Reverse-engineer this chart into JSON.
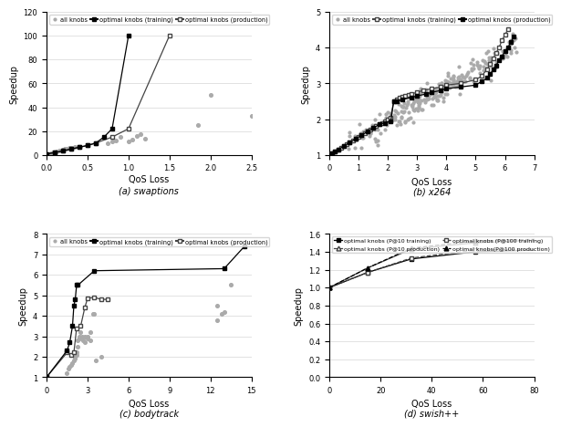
{
  "subplots": [
    {
      "label": "(a) swaptions",
      "xlabel": "QoS Loss",
      "ylabel": "Speedup",
      "xlim": [
        0,
        2.5
      ],
      "ylim": [
        0,
        120
      ],
      "yticks": [
        0,
        20,
        40,
        60,
        80,
        100,
        120
      ],
      "xticks": [
        0,
        0.5,
        1.0,
        1.5,
        2.0,
        2.5
      ],
      "all_knobs": [
        [
          0.0,
          1.0
        ],
        [
          0.05,
          1.5
        ],
        [
          0.08,
          2.0
        ],
        [
          0.1,
          2.5
        ],
        [
          0.12,
          3.0
        ],
        [
          0.15,
          3.5
        ],
        [
          0.18,
          4.0
        ],
        [
          0.2,
          4.5
        ],
        [
          0.22,
          5.0
        ],
        [
          0.25,
          5.5
        ],
        [
          0.28,
          5.8
        ],
        [
          0.3,
          6.0
        ],
        [
          0.35,
          6.5
        ],
        [
          0.4,
          7.0
        ],
        [
          0.5,
          8.0
        ],
        [
          0.75,
          10.0
        ],
        [
          0.8,
          11.0
        ],
        [
          0.85,
          12.0
        ],
        [
          0.9,
          15.0
        ],
        [
          1.0,
          11.0
        ],
        [
          1.05,
          13.0
        ],
        [
          1.1,
          16.0
        ],
        [
          1.15,
          17.5
        ],
        [
          1.2,
          14.0
        ],
        [
          1.85,
          25.0
        ],
        [
          2.0,
          50.0
        ],
        [
          2.5,
          33.0
        ]
      ],
      "train_line": [
        [
          0.0,
          1.0
        ],
        [
          0.1,
          2.0
        ],
        [
          0.2,
          3.5
        ],
        [
          0.3,
          5.0
        ],
        [
          0.4,
          6.5
        ],
        [
          0.5,
          8.0
        ],
        [
          0.6,
          10.0
        ],
        [
          0.7,
          15.0
        ],
        [
          0.8,
          22.0
        ],
        [
          1.0,
          100.0
        ]
      ],
      "prod_line": [
        [
          0.0,
          1.0
        ],
        [
          0.1,
          2.0
        ],
        [
          0.2,
          3.5
        ],
        [
          0.3,
          5.0
        ],
        [
          0.4,
          6.5
        ],
        [
          0.5,
          8.0
        ],
        [
          0.6,
          10.0
        ],
        [
          0.8,
          15.0
        ],
        [
          1.0,
          22.0
        ],
        [
          1.5,
          100.0
        ]
      ]
    },
    {
      "label": "(b) x264",
      "xlabel": "QoS Loss",
      "ylabel": "Speedup",
      "xlim": [
        0,
        7
      ],
      "ylim": [
        1,
        5
      ],
      "yticks": [
        1,
        2,
        3,
        4,
        5
      ],
      "xticks": [
        0,
        1,
        2,
        3,
        4,
        5,
        6,
        7
      ],
      "train_line": [
        [
          0.0,
          1.0
        ],
        [
          0.1,
          1.05
        ],
        [
          0.2,
          1.1
        ],
        [
          0.3,
          1.15
        ],
        [
          0.4,
          1.2
        ],
        [
          0.5,
          1.25
        ],
        [
          0.6,
          1.3
        ],
        [
          0.7,
          1.35
        ],
        [
          0.8,
          1.4
        ],
        [
          0.9,
          1.45
        ],
        [
          1.0,
          1.5
        ],
        [
          1.1,
          1.55
        ],
        [
          1.2,
          1.6
        ],
        [
          1.3,
          1.65
        ],
        [
          1.4,
          1.7
        ],
        [
          1.5,
          1.75
        ],
        [
          1.6,
          1.8
        ],
        [
          1.7,
          1.85
        ],
        [
          1.8,
          1.9
        ],
        [
          1.9,
          1.95
        ],
        [
          2.0,
          2.0
        ],
        [
          2.1,
          2.05
        ],
        [
          2.2,
          2.5
        ],
        [
          2.3,
          2.55
        ],
        [
          2.4,
          2.6
        ],
        [
          2.5,
          2.62
        ],
        [
          2.6,
          2.65
        ],
        [
          2.7,
          2.68
        ],
        [
          2.8,
          2.7
        ],
        [
          3.0,
          2.75
        ],
        [
          3.2,
          2.8
        ],
        [
          3.5,
          2.85
        ],
        [
          3.8,
          2.9
        ],
        [
          4.0,
          2.95
        ],
        [
          4.5,
          3.0
        ],
        [
          5.0,
          3.1
        ],
        [
          5.2,
          3.2
        ],
        [
          5.4,
          3.4
        ],
        [
          5.5,
          3.55
        ],
        [
          5.6,
          3.7
        ],
        [
          5.7,
          3.85
        ],
        [
          5.8,
          4.0
        ],
        [
          5.9,
          4.2
        ],
        [
          6.0,
          4.35
        ],
        [
          6.1,
          4.5
        ]
      ],
      "prod_line": [
        [
          0.0,
          1.0
        ],
        [
          0.1,
          1.05
        ],
        [
          0.2,
          1.1
        ],
        [
          0.3,
          1.15
        ],
        [
          0.5,
          1.25
        ],
        [
          0.7,
          1.35
        ],
        [
          0.9,
          1.45
        ],
        [
          1.1,
          1.55
        ],
        [
          1.3,
          1.65
        ],
        [
          1.5,
          1.75
        ],
        [
          1.7,
          1.85
        ],
        [
          1.9,
          1.9
        ],
        [
          2.1,
          1.95
        ],
        [
          2.2,
          2.5
        ],
        [
          2.3,
          2.5
        ],
        [
          2.5,
          2.55
        ],
        [
          2.8,
          2.6
        ],
        [
          3.0,
          2.65
        ],
        [
          3.3,
          2.7
        ],
        [
          3.5,
          2.75
        ],
        [
          3.8,
          2.8
        ],
        [
          4.0,
          2.85
        ],
        [
          4.5,
          2.9
        ],
        [
          5.0,
          2.95
        ],
        [
          5.2,
          3.05
        ],
        [
          5.4,
          3.15
        ],
        [
          5.5,
          3.25
        ],
        [
          5.6,
          3.4
        ],
        [
          5.7,
          3.5
        ],
        [
          5.8,
          3.65
        ],
        [
          5.9,
          3.75
        ],
        [
          6.0,
          3.9
        ],
        [
          6.1,
          4.0
        ],
        [
          6.2,
          4.15
        ],
        [
          6.3,
          4.3
        ]
      ]
    },
    {
      "label": "(c) bodytrack",
      "xlabel": "QoS Loss",
      "ylabel": "Speedup",
      "xlim": [
        0,
        15
      ],
      "ylim": [
        1,
        8
      ],
      "yticks": [
        1,
        2,
        3,
        4,
        5,
        6,
        7,
        8
      ],
      "xticks": [
        0,
        3,
        6,
        9,
        12,
        15
      ],
      "all_knobs": [
        [
          1.5,
          1.2
        ],
        [
          1.6,
          1.4
        ],
        [
          1.7,
          1.5
        ],
        [
          1.8,
          1.6
        ],
        [
          1.9,
          1.7
        ],
        [
          2.0,
          1.8
        ],
        [
          2.1,
          1.9
        ],
        [
          2.1,
          2.0
        ],
        [
          2.2,
          2.1
        ],
        [
          2.2,
          2.2
        ],
        [
          2.3,
          2.5
        ],
        [
          2.3,
          2.8
        ],
        [
          2.4,
          2.9
        ],
        [
          2.4,
          3.0
        ],
        [
          2.5,
          3.2
        ],
        [
          2.5,
          3.5
        ],
        [
          2.6,
          3.0
        ],
        [
          2.7,
          2.8
        ],
        [
          2.8,
          2.7
        ],
        [
          2.8,
          3.0
        ],
        [
          3.0,
          3.0
        ],
        [
          3.0,
          2.9
        ],
        [
          3.2,
          3.2
        ],
        [
          3.2,
          2.8
        ],
        [
          3.4,
          4.1
        ],
        [
          3.5,
          4.1
        ],
        [
          3.6,
          1.8
        ],
        [
          4.0,
          2.0
        ],
        [
          12.5,
          3.8
        ],
        [
          12.5,
          4.5
        ],
        [
          12.8,
          4.1
        ],
        [
          13.0,
          4.2
        ],
        [
          13.5,
          5.5
        ]
      ],
      "train_line": [
        [
          0.0,
          1.0
        ],
        [
          1.5,
          2.3
        ],
        [
          1.7,
          2.7
        ],
        [
          1.9,
          3.5
        ],
        [
          2.0,
          4.5
        ],
        [
          2.1,
          4.8
        ],
        [
          2.2,
          5.5
        ],
        [
          2.3,
          5.5
        ],
        [
          3.5,
          6.2
        ],
        [
          13.0,
          6.3
        ],
        [
          14.5,
          7.4
        ]
      ],
      "prod_line": [
        [
          0.0,
          1.0
        ],
        [
          1.5,
          2.2
        ],
        [
          1.8,
          2.1
        ],
        [
          2.0,
          2.2
        ],
        [
          2.2,
          3.4
        ],
        [
          2.5,
          3.5
        ],
        [
          2.8,
          4.4
        ],
        [
          3.0,
          4.85
        ],
        [
          3.5,
          4.9
        ],
        [
          4.0,
          4.8
        ],
        [
          4.5,
          4.8
        ]
      ]
    },
    {
      "label": "(d) swish++",
      "xlabel": "QoS Loss",
      "ylabel": "Speedup",
      "xlim": [
        0,
        80
      ],
      "ylim": [
        0,
        1.6
      ],
      "yticks": [
        0.0,
        0.2,
        0.4,
        0.6,
        0.8,
        1.0,
        1.2,
        1.4,
        1.6
      ],
      "xticks": [
        0,
        20,
        40,
        60,
        80
      ],
      "legend_labels": [
        "optimal knobs (P@10 training)",
        "optimal knobs (P@10 production)",
        "optimal knobs (P@100 training)",
        "optimal knobs(P@100 production)"
      ],
      "lines": [
        {
          "x": [
            0,
            15,
            32,
            57,
            82
          ],
          "y": [
            1.0,
            1.17,
            1.32,
            1.4,
            1.42
          ]
        },
        {
          "x": [
            0,
            15,
            32,
            57,
            82
          ],
          "y": [
            1.0,
            1.22,
            1.43,
            1.5,
            1.53
          ]
        },
        {
          "x": [
            0,
            15,
            32,
            57,
            82
          ],
          "y": [
            1.0,
            1.17,
            1.33,
            1.42,
            1.43
          ]
        },
        {
          "x": [
            0,
            15,
            32,
            57,
            82
          ],
          "y": [
            1.0,
            1.22,
            1.44,
            1.52,
            1.54
          ]
        }
      ]
    }
  ],
  "colors": {
    "all_knobs": "#aaaaaa",
    "black": "#000000",
    "darkgray": "#444444",
    "gray": "#888888"
  }
}
